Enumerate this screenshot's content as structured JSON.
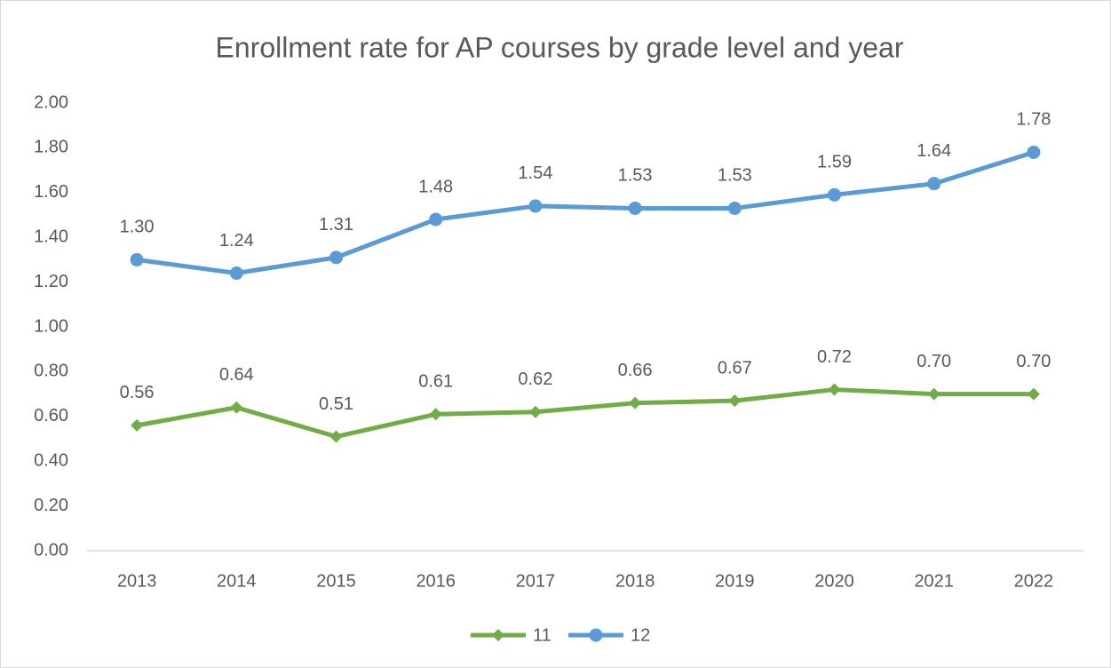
{
  "chart_data": {
    "type": "line",
    "title": "Enrollment rate for AP courses by grade level and year",
    "categories": [
      "2013",
      "2014",
      "2015",
      "2016",
      "2017",
      "2018",
      "2019",
      "2020",
      "2021",
      "2022"
    ],
    "series": [
      {
        "name": "11",
        "color": "#70ad47",
        "marker": "diamond",
        "values": [
          0.56,
          0.64,
          0.51,
          0.61,
          0.62,
          0.66,
          0.67,
          0.72,
          0.7,
          0.7
        ],
        "value_labels": [
          "0.56",
          "0.64",
          "0.51",
          "0.61",
          "0.62",
          "0.66",
          "0.67",
          "0.72",
          "0.70",
          "0.70"
        ]
      },
      {
        "name": "12",
        "color": "#5b9bd5",
        "marker": "circle",
        "values": [
          1.3,
          1.24,
          1.31,
          1.48,
          1.54,
          1.53,
          1.53,
          1.59,
          1.64,
          1.78
        ],
        "value_labels": [
          "1.30",
          "1.24",
          "1.31",
          "1.48",
          "1.54",
          "1.53",
          "1.53",
          "1.59",
          "1.64",
          "1.78"
        ]
      }
    ],
    "ylim": [
      0,
      2
    ],
    "yticks": [
      {
        "value": 0,
        "label": "0.00"
      },
      {
        "value": 0.2,
        "label": "0.20"
      },
      {
        "value": 0.4,
        "label": "0.40"
      },
      {
        "value": 0.6,
        "label": "0.60"
      },
      {
        "value": 0.8,
        "label": "0.80"
      },
      {
        "value": 1,
        "label": "1.00"
      },
      {
        "value": 1.2,
        "label": "1.20"
      },
      {
        "value": 1.4,
        "label": "1.40"
      },
      {
        "value": 1.6,
        "label": "1.60"
      },
      {
        "value": 1.8,
        "label": "1.80"
      },
      {
        "value": 2,
        "label": "2.00"
      }
    ],
    "grid": false,
    "legend": "bottom"
  }
}
